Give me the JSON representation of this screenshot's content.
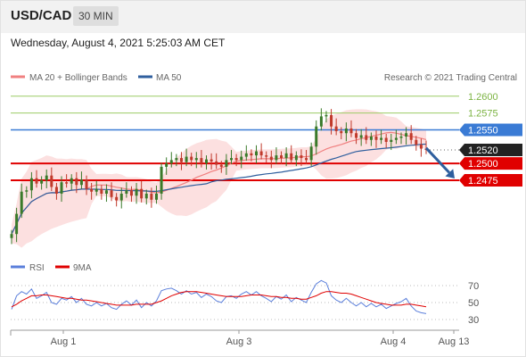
{
  "header": {
    "symbol": "USD/CAD",
    "timeframe": "30 MIN"
  },
  "timestamp": "Wednesday, August 4, 2021 5:25:03 AM CET",
  "copyright": "Research © 2021 Trading Central",
  "legend": {
    "ma20": "MA 20 + Bollinger Bands",
    "ma50": "MA 50",
    "rsi": "RSI",
    "ma9": "9MA"
  },
  "colors": {
    "ma20": "#f08080",
    "ma50": "#2f5f9e",
    "bollinger": "#fbd5d5",
    "resistance": "#9ccc65",
    "pivot": "#3a7bd5",
    "support": "#e00000",
    "price_badge": "#222222",
    "rsi": "#5b7fdb",
    "candle_up": "#3a7a2a",
    "candle_down": "#c0392b"
  },
  "chart_data": [
    {
      "type": "candlestick",
      "instrument": "USD/CAD",
      "interval": "30 MIN",
      "x_ticks": [
        "Aug 1",
        "Aug 3",
        "Aug 4",
        "Aug 13"
      ],
      "y_range": [
        1.2378,
        1.2617
      ],
      "levels": [
        {
          "label": "1.2600",
          "value": 1.26,
          "kind": "resistance"
        },
        {
          "label": "1.2575",
          "value": 1.2575,
          "kind": "resistance"
        },
        {
          "label": "1.2550",
          "value": 1.255,
          "kind": "pivot"
        },
        {
          "label": "1.2520",
          "value": 1.252,
          "kind": "last"
        },
        {
          "label": "1.2500",
          "value": 1.25,
          "kind": "support"
        },
        {
          "label": "1.2475",
          "value": 1.2475,
          "kind": "support"
        }
      ],
      "forecast": {
        "from": 1.2523,
        "to": 1.2475
      },
      "close": [
        1.2395,
        1.2425,
        1.2458,
        1.246,
        1.2478,
        1.247,
        1.2475,
        1.2482,
        1.2465,
        1.2455,
        1.2472,
        1.247,
        1.2478,
        1.2468,
        1.2476,
        1.2462,
        1.2458,
        1.2462,
        1.2455,
        1.246,
        1.245,
        1.2445,
        1.2455,
        1.246,
        1.2452,
        1.2462,
        1.2448,
        1.2455,
        1.2446,
        1.2455,
        1.2495,
        1.25,
        1.2505,
        1.2508,
        1.2502,
        1.251,
        1.2505,
        1.2508,
        1.25,
        1.2506,
        1.2503,
        1.2498,
        1.2495,
        1.2505,
        1.2508,
        1.2505,
        1.251,
        1.2515,
        1.2512,
        1.2518,
        1.2512,
        1.251,
        1.2505,
        1.2512,
        1.2508,
        1.2515,
        1.2505,
        1.2512,
        1.2508,
        1.2505,
        1.2525,
        1.2555,
        1.257,
        1.2572,
        1.2555,
        1.2548,
        1.2545,
        1.2552,
        1.2545,
        1.2538,
        1.2542,
        1.2535,
        1.254,
        1.2535,
        1.2538,
        1.2532,
        1.2535,
        1.2538,
        1.254,
        1.2545,
        1.2535,
        1.2528,
        1.2522,
        1.252
      ],
      "rsi_panel": {
        "y_ticks": [
          70,
          50,
          30
        ],
        "rsi": [
          42,
          58,
          63,
          60,
          66,
          55,
          58,
          62,
          50,
          48,
          55,
          53,
          57,
          50,
          55,
          48,
          46,
          50,
          46,
          49,
          44,
          42,
          48,
          52,
          47,
          53,
          44,
          50,
          46,
          52,
          64,
          66,
          67,
          64,
          60,
          64,
          60,
          62,
          56,
          60,
          57,
          52,
          50,
          57,
          58,
          55,
          60,
          63,
          59,
          63,
          58,
          55,
          51,
          57,
          54,
          59,
          51,
          56,
          53,
          50,
          62,
          72,
          76,
          73,
          58,
          53,
          50,
          55,
          50,
          46,
          50,
          45,
          49,
          45,
          48,
          43,
          46,
          49,
          51,
          55,
          46,
          40,
          38,
          37
        ],
        "ma9": [
          45,
          48,
          52,
          55,
          58,
          58,
          59,
          59,
          58,
          57,
          56,
          55,
          55,
          54,
          53,
          53,
          52,
          51,
          50,
          49,
          48,
          47,
          47,
          47,
          47,
          48,
          48,
          48,
          48,
          50,
          52,
          55,
          58,
          60,
          62,
          63,
          63,
          63,
          62,
          61,
          60,
          59,
          58,
          57,
          57,
          57,
          57,
          58,
          59,
          59,
          59,
          58,
          57,
          57,
          56,
          56,
          55,
          55,
          54,
          54,
          56,
          58,
          61,
          63,
          63,
          62,
          61,
          61,
          60,
          58,
          56,
          54,
          52,
          50,
          49,
          48,
          47,
          47,
          47,
          48,
          48,
          47,
          46,
          45
        ]
      }
    }
  ]
}
